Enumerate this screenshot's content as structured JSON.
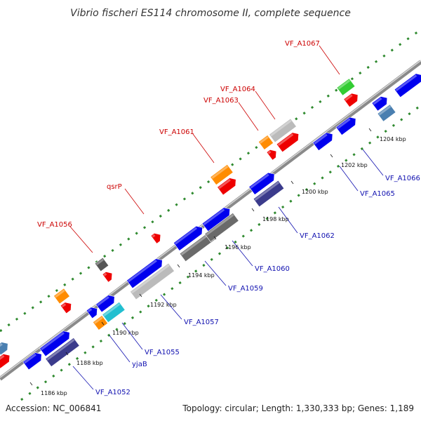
{
  "title": "Vibrio fischeri ES114 chromosome II, complete sequence",
  "footer": {
    "accession": "Accession: NC_006841",
    "summary": "Topology: circular; Length: 1,330,333 bp; Genes: 1,189"
  },
  "colors": {
    "label_forward": "#cc0000",
    "label_reverse": "#1010b0",
    "dot_track": "#2f8a2f",
    "backbone": "#8a8a8a"
  },
  "ticks": [
    "1186 kbp",
    "1188 kbp",
    "1190 kbp",
    "1192 kbp",
    "1194 kbp",
    "1196 kbp",
    "1198 kbp",
    "1200 kbp",
    "1202 kbp",
    "1204 kbp"
  ],
  "forward_labels": [
    "VF_A1056",
    "qsrP",
    "VF_A1061",
    "VF_A1063",
    "VF_A1064",
    "VF_A1067"
  ],
  "reverse_labels": [
    "VF_A1052",
    "yjaB",
    "VF_A1055",
    "VF_A1057",
    "VF_A1059",
    "VF_A1060",
    "VF_A1062",
    "VF_A1065",
    "VF_A1066"
  ]
}
